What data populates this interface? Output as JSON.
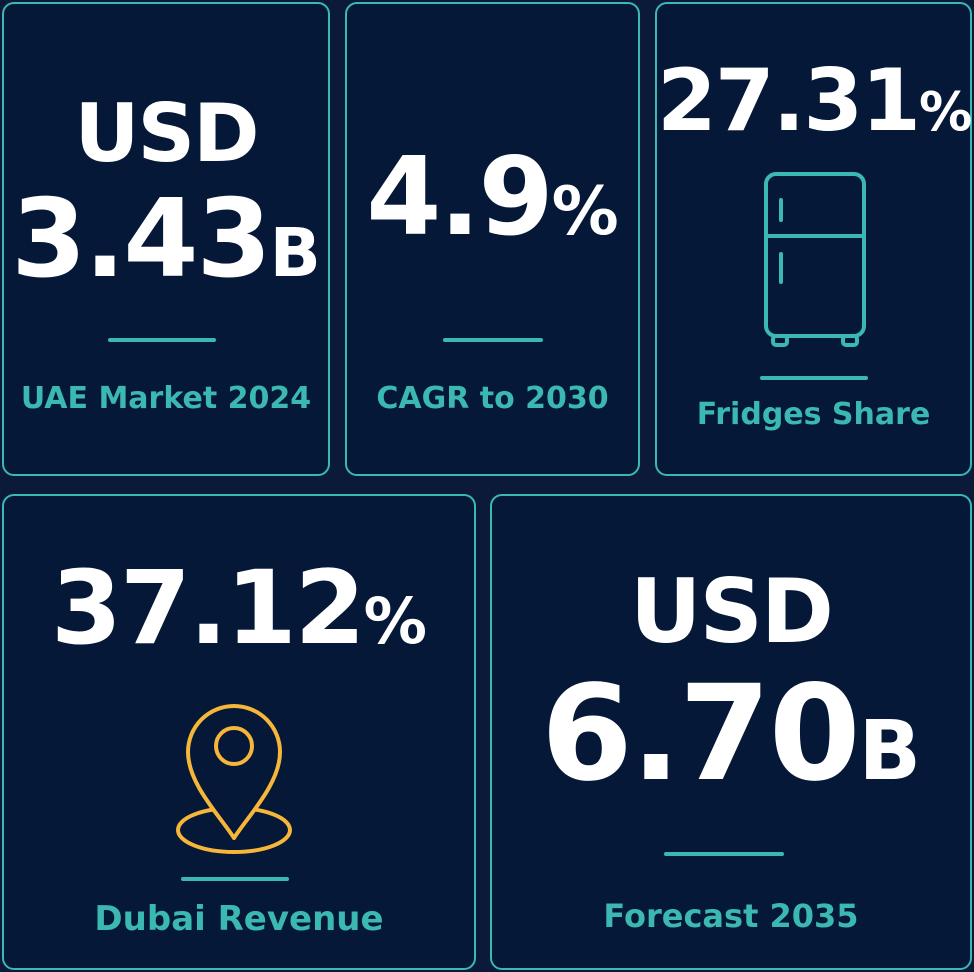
{
  "colors": {
    "background": "#0a1a38",
    "card": "#061838",
    "accent": "#3cb8b2",
    "value": "#ffffff",
    "pin": "#f5b63a"
  },
  "cards": [
    {
      "prefix": "USD",
      "number": "3.43",
      "unit": "B",
      "label": "UAE Market 2024"
    },
    {
      "number": "4.9",
      "unit": "%",
      "label": "CAGR to 2030"
    },
    {
      "number": "27.31",
      "unit": "%",
      "label": "Fridges Share",
      "icon": "refrigerator-icon"
    },
    {
      "number": "37.12",
      "unit": "%",
      "label": "Dubai Revenue",
      "icon": "location-pin-icon"
    },
    {
      "prefix": "USD",
      "number": "6.70",
      "unit": "B",
      "label": "Forecast 2035"
    }
  ]
}
